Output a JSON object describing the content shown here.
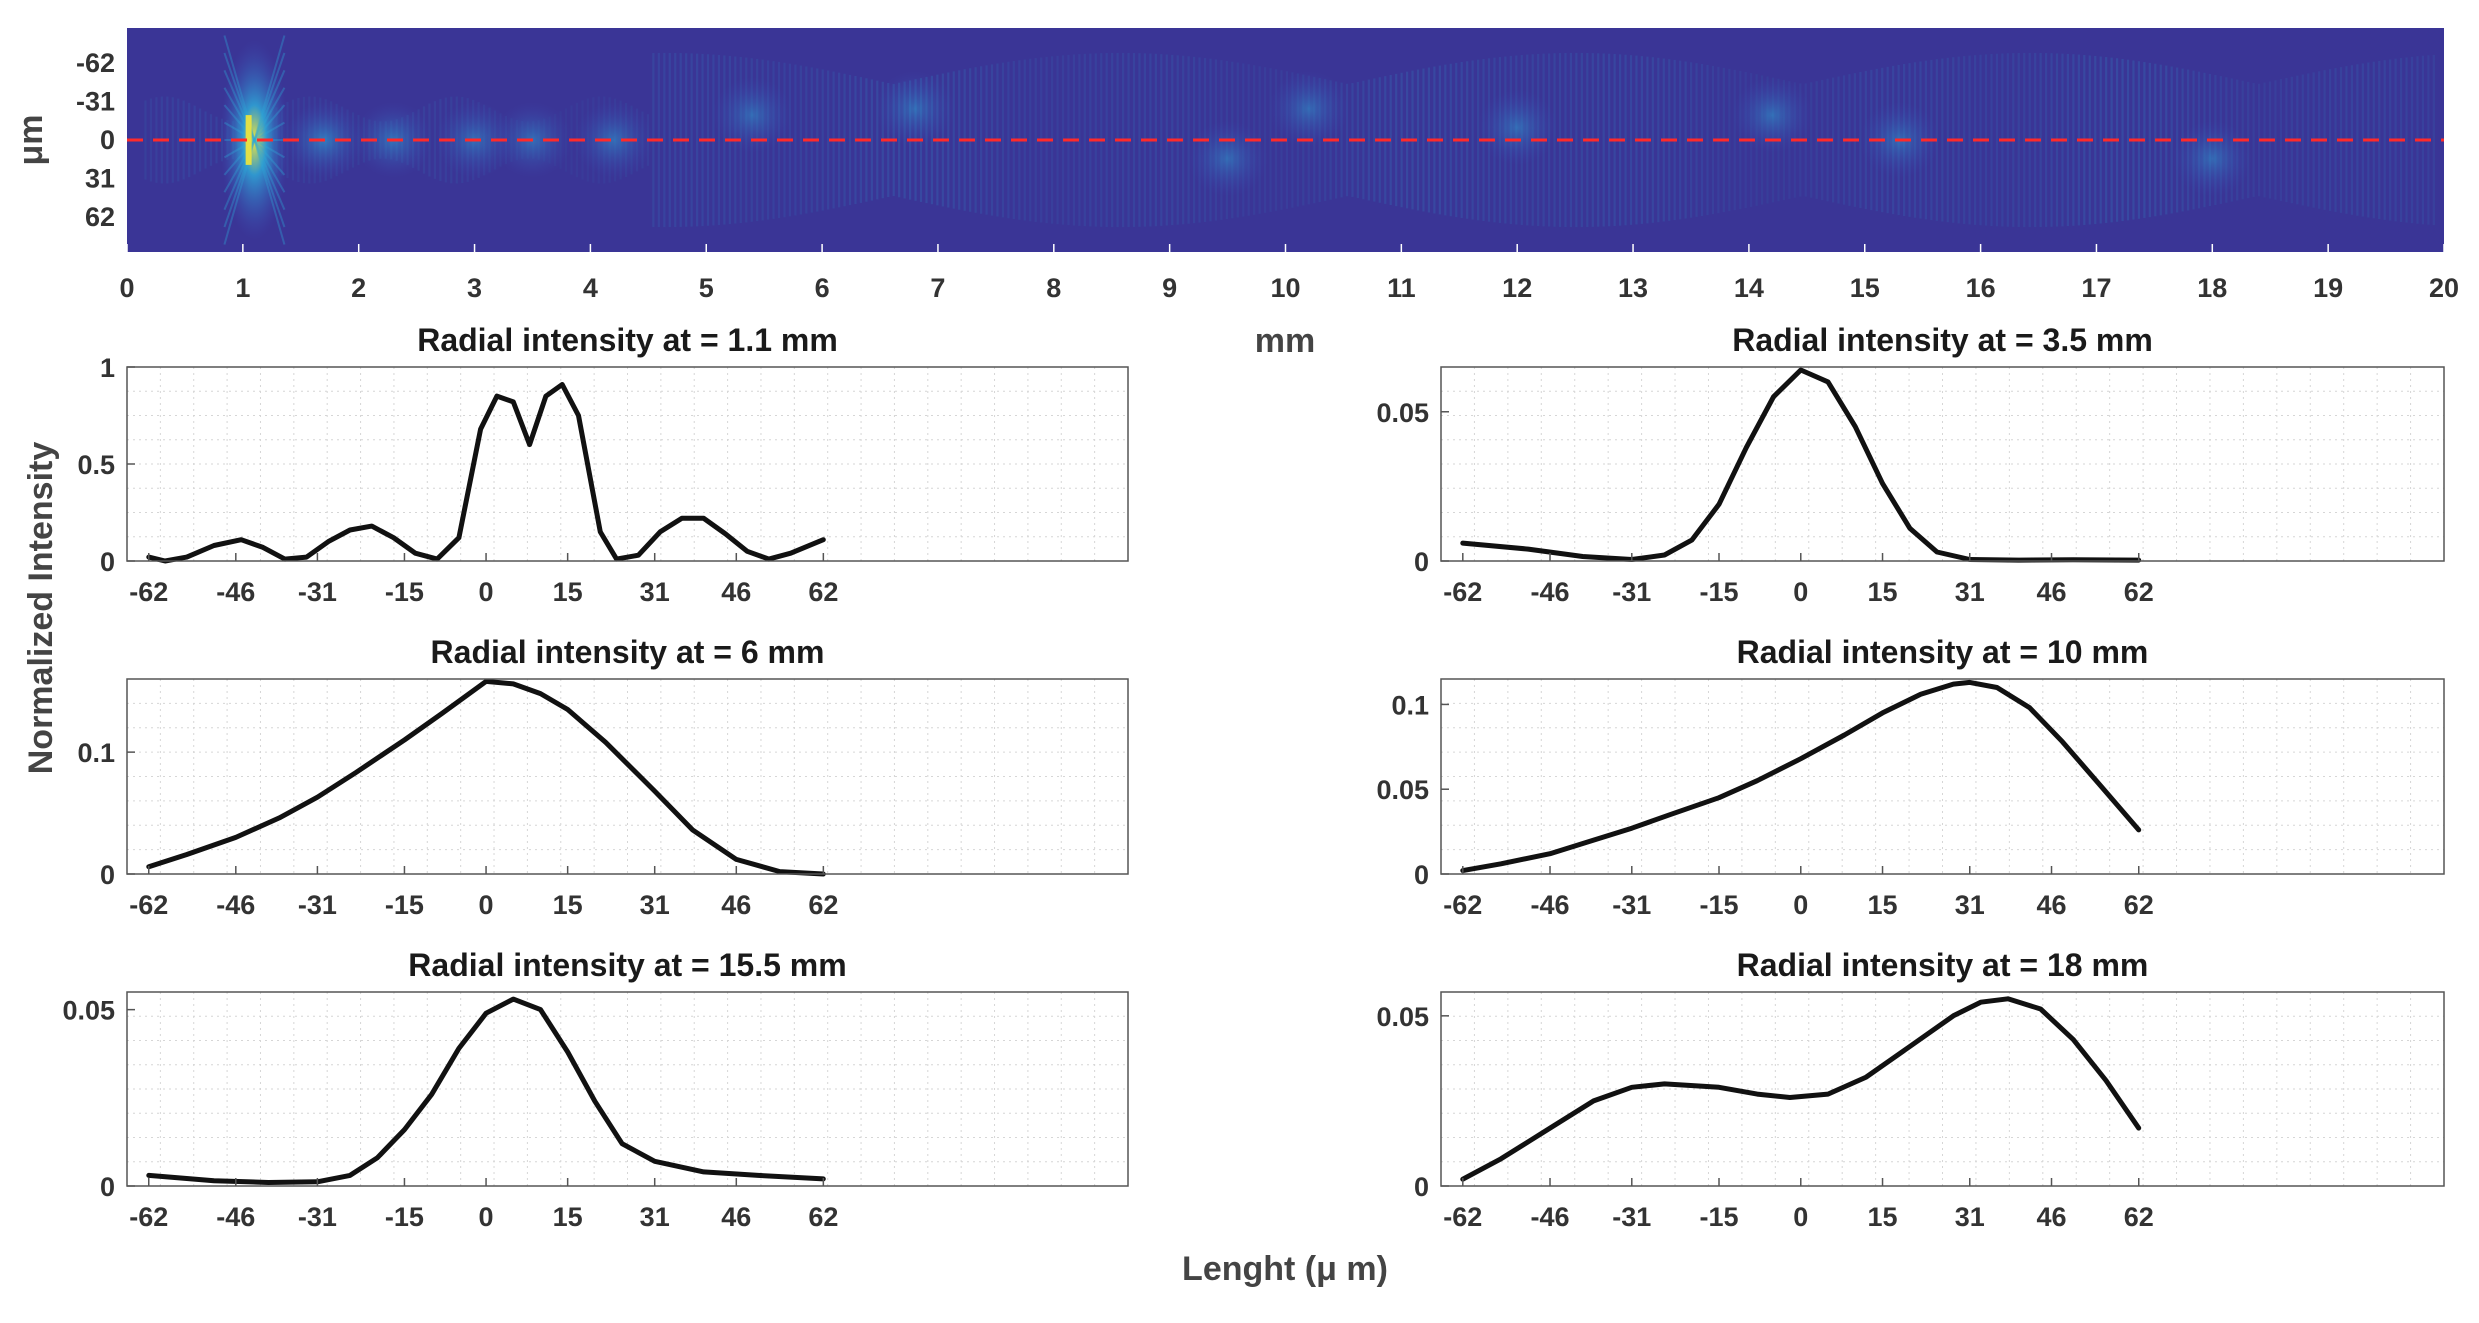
{
  "figure": {
    "heatmap_x_unit": "mm",
    "heatmap_y_unit": "μm",
    "shared_ylabel": "Normalized Intensity",
    "shared_xlabel": "Lenght (μ m)"
  },
  "colors": {
    "heatmap_background": "#3a3596",
    "heatmap_low": "#3b4fb8",
    "heatmap_mid": "#2ea8d8",
    "heatmap_high": "#f2e63a",
    "centerline": "#ff2a2a",
    "curve": "#111111",
    "grid": "#d6d6d6"
  },
  "chart_data": [
    {
      "type": "heatmap",
      "title": "",
      "xlabel": "mm",
      "ylabel": "μm",
      "xlim": [
        0,
        20
      ],
      "ylim": [
        -90,
        90
      ],
      "x_ticks": [
        "0",
        "1",
        "2",
        "3",
        "4",
        "5",
        "6",
        "7",
        "8",
        "9",
        "10",
        "11",
        "12",
        "13",
        "14",
        "15",
        "16",
        "17",
        "18",
        "19",
        "20"
      ],
      "y_ticks": [
        "-62",
        "-31",
        "0",
        "31",
        "62"
      ],
      "y_reversed": true,
      "centerline_y": 0,
      "hot_spots": [
        {
          "x": 1.1,
          "y": 0,
          "level": 1.0
        },
        {
          "x": 1.7,
          "y": 0,
          "level": 0.5
        },
        {
          "x": 2.3,
          "y": 0,
          "level": 0.4
        },
        {
          "x": 3.0,
          "y": 0,
          "level": 0.35
        },
        {
          "x": 3.5,
          "y": 0,
          "level": 0.35
        },
        {
          "x": 4.2,
          "y": 0,
          "level": 0.35
        },
        {
          "x": 5.4,
          "y": -20,
          "level": 0.3
        },
        {
          "x": 6.8,
          "y": -25,
          "level": 0.3
        },
        {
          "x": 9.5,
          "y": 15,
          "level": 0.3
        },
        {
          "x": 10.2,
          "y": -25,
          "level": 0.3
        },
        {
          "x": 12.0,
          "y": -10,
          "level": 0.3
        },
        {
          "x": 14.2,
          "y": -20,
          "level": 0.35
        },
        {
          "x": 15.3,
          "y": 0,
          "level": 0.3
        },
        {
          "x": 18.0,
          "y": 15,
          "level": 0.3
        }
      ]
    },
    {
      "type": "line",
      "title": "Radial intensity at = 1.1 mm",
      "xlabel": "",
      "ylabel": "",
      "xlim": [
        -66,
        118
      ],
      "ylim": [
        0,
        1
      ],
      "x_ticks": [
        "-62",
        "-46",
        "-31",
        "-15",
        "0",
        "15",
        "31",
        "46",
        "62"
      ],
      "y_ticks": [
        "0",
        "0.5",
        "1"
      ],
      "x": [
        -62,
        -59,
        -55,
        -50,
        -45,
        -41,
        -37,
        -33,
        -29,
        -25,
        -21,
        -17,
        -13,
        -9,
        -5,
        -1,
        2,
        5,
        8,
        11,
        14,
        17,
        21,
        24,
        28,
        32,
        36,
        40,
        44,
        48,
        52,
        56,
        62
      ],
      "values": [
        0.02,
        0.0,
        0.02,
        0.08,
        0.11,
        0.07,
        0.01,
        0.02,
        0.1,
        0.16,
        0.18,
        0.12,
        0.04,
        0.01,
        0.12,
        0.68,
        0.85,
        0.82,
        0.6,
        0.85,
        0.91,
        0.75,
        0.15,
        0.01,
        0.03,
        0.15,
        0.22,
        0.22,
        0.14,
        0.05,
        0.01,
        0.04,
        0.11
      ],
      "grid": true,
      "legend": "none"
    },
    {
      "type": "line",
      "title": "Radial intensity at =  3.5 mm",
      "xlabel": "",
      "ylabel": "",
      "xlim": [
        -66,
        118
      ],
      "ylim": [
        0,
        0.065
      ],
      "x_ticks": [
        "-62",
        "-46",
        "-31",
        "-15",
        "0",
        "15",
        "31",
        "46",
        "62"
      ],
      "y_ticks": [
        "0",
        "0.05"
      ],
      "x": [
        -62,
        -50,
        -40,
        -31,
        -25,
        -20,
        -15,
        -10,
        -5,
        0,
        5,
        10,
        15,
        20,
        25,
        31,
        40,
        50,
        62
      ],
      "values": [
        0.006,
        0.004,
        0.0015,
        0.0005,
        0.002,
        0.007,
        0.019,
        0.038,
        0.055,
        0.064,
        0.06,
        0.045,
        0.026,
        0.011,
        0.003,
        0.0005,
        0.0003,
        0.0004,
        0.0003
      ],
      "grid": true,
      "legend": "none"
    },
    {
      "type": "line",
      "title": "Radial intensity at = 6 mm",
      "xlabel": "",
      "ylabel": "",
      "xlim": [
        -66,
        118
      ],
      "ylim": [
        0,
        0.16
      ],
      "x_ticks": [
        "-62",
        "-46",
        "-31",
        "-15",
        "0",
        "15",
        "31",
        "46",
        "62"
      ],
      "y_ticks": [
        "0",
        "0.1"
      ],
      "x": [
        -62,
        -55,
        -46,
        -38,
        -31,
        -24,
        -15,
        -8,
        0,
        5,
        10,
        15,
        22,
        31,
        38,
        46,
        54,
        62
      ],
      "values": [
        0.006,
        0.016,
        0.03,
        0.046,
        0.063,
        0.083,
        0.11,
        0.132,
        0.158,
        0.156,
        0.148,
        0.135,
        0.108,
        0.068,
        0.036,
        0.012,
        0.002,
        0.0
      ],
      "grid": true,
      "legend": "none"
    },
    {
      "type": "line",
      "title": "Radial intensity at = 10 mm",
      "xlabel": "",
      "ylabel": "",
      "xlim": [
        -66,
        118
      ],
      "ylim": [
        0,
        0.115
      ],
      "x_ticks": [
        "-62",
        "-46",
        "-31",
        "-15",
        "0",
        "15",
        "31",
        "46",
        "62"
      ],
      "y_ticks": [
        "0",
        "0.05",
        "0.1"
      ],
      "x": [
        -62,
        -55,
        -46,
        -38,
        -31,
        -24,
        -15,
        -8,
        0,
        8,
        15,
        22,
        28,
        31,
        36,
        42,
        48,
        55,
        62
      ],
      "values": [
        0.002,
        0.006,
        0.012,
        0.02,
        0.027,
        0.035,
        0.045,
        0.055,
        0.068,
        0.082,
        0.095,
        0.106,
        0.112,
        0.113,
        0.11,
        0.098,
        0.078,
        0.052,
        0.026
      ],
      "grid": true,
      "legend": "none"
    },
    {
      "type": "line",
      "title": "Radial intensity at = 15.5 mm",
      "xlabel": "",
      "ylabel": "",
      "xlim": [
        -66,
        118
      ],
      "ylim": [
        0,
        0.055
      ],
      "x_ticks": [
        "-62",
        "-46",
        "-31",
        "-15",
        "0",
        "15",
        "31",
        "46",
        "62"
      ],
      "y_ticks": [
        "0",
        "0.05"
      ],
      "x": [
        -62,
        -50,
        -40,
        -31,
        -25,
        -20,
        -15,
        -10,
        -5,
        0,
        5,
        10,
        15,
        20,
        25,
        31,
        40,
        50,
        62
      ],
      "values": [
        0.003,
        0.0015,
        0.001,
        0.0012,
        0.003,
        0.008,
        0.016,
        0.026,
        0.039,
        0.049,
        0.053,
        0.05,
        0.038,
        0.024,
        0.012,
        0.007,
        0.004,
        0.003,
        0.002
      ],
      "grid": true,
      "legend": "none"
    },
    {
      "type": "line",
      "title": "Radial intensity at = 18 mm",
      "xlabel": "",
      "ylabel": "",
      "xlim": [
        -66,
        118
      ],
      "ylim": [
        0,
        0.057
      ],
      "x_ticks": [
        "-62",
        "-46",
        "-31",
        "-15",
        "0",
        "15",
        "31",
        "46",
        "62"
      ],
      "y_ticks": [
        "0",
        "0.05"
      ],
      "x": [
        -62,
        -55,
        -46,
        -38,
        -31,
        -25,
        -15,
        -8,
        -2,
        5,
        12,
        20,
        28,
        33,
        38,
        44,
        50,
        56,
        62
      ],
      "values": [
        0.002,
        0.008,
        0.017,
        0.025,
        0.029,
        0.03,
        0.029,
        0.027,
        0.026,
        0.027,
        0.032,
        0.041,
        0.05,
        0.054,
        0.055,
        0.052,
        0.043,
        0.031,
        0.017
      ],
      "grid": true,
      "legend": "none"
    }
  ]
}
